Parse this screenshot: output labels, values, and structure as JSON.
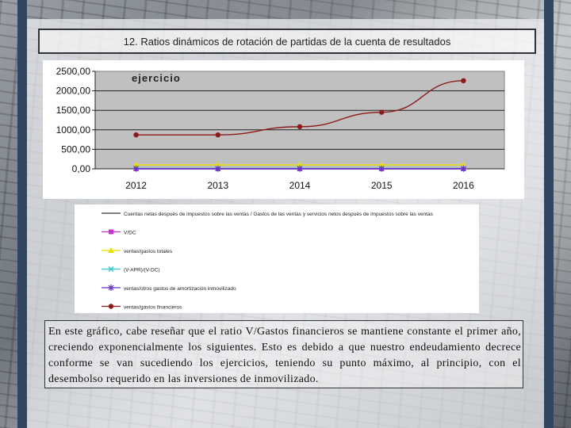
{
  "slide_title": "12. Ratios dinámicos de rotación de partidas de la cuenta de resultados",
  "chart_data": {
    "type": "line",
    "title": "ejercicio",
    "categories": [
      "2012",
      "2013",
      "2014",
      "2015",
      "2016"
    ],
    "ylim": [
      0,
      2500
    ],
    "yticks": [
      "0,00",
      "500,00",
      "1000,00",
      "1500,00",
      "2000,00",
      "2500,00"
    ],
    "ytick_values": [
      0,
      500,
      1000,
      1500,
      2000,
      2500
    ],
    "grid": true,
    "legend_position": "below",
    "series": [
      {
        "name": "Cuentas netas después de impuestos sobre las ventas / Gastos de las ventas y servicios netos después de impuestos sobre las ventas",
        "color": "#333333",
        "marker": "none",
        "values": [
          0,
          0,
          0,
          0,
          0
        ]
      },
      {
        "name": "V/DC",
        "color": "#cc33cc",
        "marker": "square",
        "values": [
          0,
          0,
          0,
          0,
          0
        ]
      },
      {
        "name": "ventas/gastos totales",
        "color": "#e8e000",
        "marker": "triangle",
        "values": [
          100,
          100,
          100,
          100,
          100
        ]
      },
      {
        "name": "(V-APR)/(V-DC)",
        "color": "#33cccc",
        "marker": "x",
        "values": [
          10,
          10,
          10,
          10,
          10
        ]
      },
      {
        "name": "ventas/otros gastos de amortización inmovilizado",
        "color": "#6633cc",
        "marker": "star",
        "values": [
          5,
          5,
          5,
          5,
          5
        ]
      },
      {
        "name": "ventas/gastos financieros",
        "color": "#8b1a1a",
        "marker": "circle",
        "values": [
          870,
          870,
          1080,
          1450,
          2260
        ]
      }
    ]
  },
  "body_text": "En este gráfico, cabe reseñar que el ratio V/Gastos financieros se mantiene constante el primer año, creciendo exponencialmente los siguientes. Esto es debido a que nuestro endeudamiento decrece conforme se van sucediendo los ejercicios, teniendo su punto máximo, al principio, con el desembolso requerido en las inversiones de inmovilizado."
}
